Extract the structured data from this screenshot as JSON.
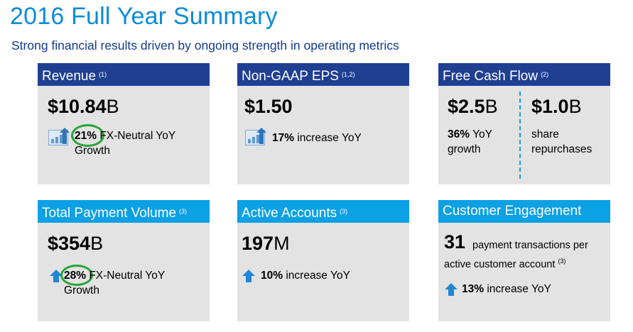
{
  "page": {
    "title": "2016 Full Year Summary",
    "subtitle": "Strong financial results driven by ongoing strength in operating metrics"
  },
  "revenue": {
    "header": "Revenue",
    "note": "(1)",
    "value": "$10.84",
    "unit": "B",
    "pct": "21%",
    "desc1": "FX-Neutral YoY",
    "desc2": "Growth"
  },
  "eps": {
    "header": "Non-GAAP EPS",
    "note": "(1,2)",
    "value": "$1.50",
    "pct": "17%",
    "desc": "increase YoY"
  },
  "fcf": {
    "header": "Free Cash Flow",
    "note": "(2)",
    "left_value": "$2.5",
    "left_unit": "B",
    "left_pct": "36%",
    "left_desc1": "YoY",
    "left_desc2": "growth",
    "right_value": "$1.0",
    "right_unit": "B",
    "right_desc1": "share",
    "right_desc2": "repurchases"
  },
  "tpv": {
    "header": "Total Payment Volume",
    "note": "(3)",
    "value": "$354",
    "unit": "B",
    "pct": "28%",
    "desc1": "FX-Neutral YoY",
    "desc2": "Growth"
  },
  "accounts": {
    "header": "Active Accounts",
    "note": "(3)",
    "value": "197",
    "unit": "M",
    "pct": "10%",
    "desc": "increase YoY"
  },
  "engagement": {
    "header": "Customer Engagement",
    "value": "31",
    "desc1": "payment transactions per",
    "desc2": "active customer account",
    "note": "(3)",
    "pct": "13%",
    "desc3": "increase YoY"
  },
  "colors": {
    "title": "#0b8bd8",
    "subtitle": "#123a8f",
    "header_dark": "#1f3f93",
    "header_light": "#0ca0e4",
    "card_bg": "#e3e3e3",
    "highlight_circle": "#27a33a"
  },
  "icons": [
    "bar-chart-up-icon",
    "up-arrow-icon"
  ]
}
